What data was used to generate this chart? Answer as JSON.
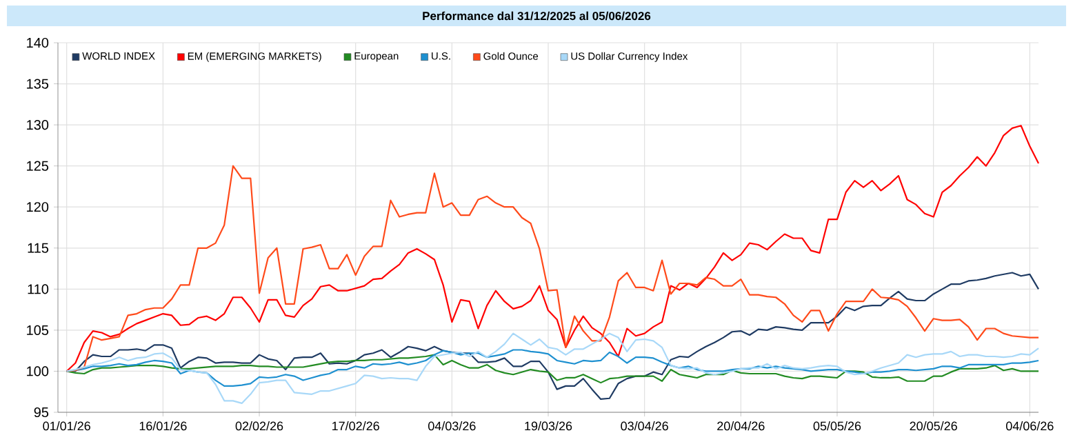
{
  "chart_data": {
    "type": "line",
    "title": "Performance dal 31/12/2025 al 05/06/2026",
    "categories": [
      "01/01/26",
      null,
      null,
      null,
      null,
      null,
      null,
      null,
      null,
      null,
      null,
      "16/01/26",
      null,
      null,
      null,
      null,
      null,
      null,
      null,
      null,
      null,
      null,
      "02/02/26",
      null,
      null,
      null,
      null,
      null,
      null,
      null,
      null,
      null,
      null,
      "17/02/26",
      null,
      null,
      null,
      null,
      null,
      null,
      null,
      null,
      null,
      null,
      "04/03/26",
      null,
      null,
      null,
      null,
      null,
      null,
      null,
      null,
      null,
      null,
      "19/03/26",
      null,
      null,
      null,
      null,
      null,
      null,
      null,
      null,
      null,
      null,
      "03/04/26",
      null,
      null,
      null,
      null,
      null,
      null,
      null,
      null,
      null,
      null,
      "20/04/26",
      null,
      null,
      null,
      null,
      null,
      null,
      null,
      null,
      null,
      null,
      "05/05/26",
      null,
      null,
      null,
      null,
      null,
      null,
      null,
      null,
      null,
      null,
      "20/05/26",
      null,
      null,
      null,
      null,
      null,
      null,
      null,
      null,
      null,
      null,
      "04/06/26",
      null
    ],
    "ylim": [
      95,
      140
    ],
    "yticks": [
      95,
      100,
      105,
      110,
      115,
      120,
      125,
      130,
      135,
      140
    ],
    "grid": true,
    "legend": "top left",
    "series": [
      {
        "name": "WORLD INDEX",
        "color": "#1f3b63",
        "values": [
          100,
          100,
          101.2,
          102,
          101.8,
          101.8,
          102.6,
          102.6,
          102.7,
          102.5,
          103.2,
          103.2,
          102.8,
          100.4,
          101.2,
          101.7,
          101.6,
          101,
          101.1,
          101.1,
          101,
          101,
          102,
          101.5,
          101.3,
          100.2,
          101.6,
          101.7,
          101.7,
          102.2,
          100.9,
          101,
          100.9,
          101.3,
          102,
          102.2,
          102.6,
          101.7,
          102.3,
          103,
          102.8,
          102.5,
          103,
          102.5,
          102.3,
          102.2,
          102.2,
          101.1,
          101.1,
          101.2,
          101.6,
          100.6,
          100.6,
          101.2,
          101.2,
          99.9,
          97.8,
          98.2,
          98.2,
          99.1,
          97.8,
          96.6,
          96.7,
          98.5,
          99.1,
          99.4,
          99.4,
          99.9,
          99.6,
          101.4,
          101.8,
          101.7,
          102.4,
          103,
          103.5,
          104.1,
          104.8,
          104.9,
          104.4,
          105.1,
          105,
          105.4,
          105.3,
          105.1,
          105,
          105.9,
          105.9,
          105.9,
          106.7,
          107.8,
          107.4,
          107.9,
          108,
          108,
          108.9,
          109.7,
          108.8,
          108.6,
          108.6,
          109.4,
          110,
          110.6,
          110.6,
          111,
          111.1,
          111.3,
          111.6,
          111.8,
          112,
          111.6,
          111.8,
          110
        ]
      },
      {
        "name": "EM (EMERGING MARKETS)",
        "color": "#ff0000",
        "values": [
          100,
          101,
          103.5,
          104.9,
          104.7,
          104.2,
          104.5,
          105.2,
          105.8,
          106.2,
          106.6,
          107,
          106.8,
          105.6,
          105.7,
          106.5,
          106.7,
          106.2,
          107,
          109,
          109,
          107.7,
          106,
          108.7,
          108.7,
          106.8,
          106.6,
          108,
          108.8,
          110.3,
          110.5,
          109.8,
          109.8,
          110.1,
          110.4,
          111.2,
          111.3,
          112.2,
          113,
          114.4,
          114.9,
          114.3,
          113.6,
          110.5,
          106,
          108.7,
          108.5,
          105.2,
          108,
          109.8,
          108.5,
          107.6,
          107.9,
          108.6,
          110.4,
          107.4,
          106.3,
          102.9,
          105,
          106.7,
          105.3,
          104.6,
          103.5,
          101.8,
          105.2,
          104.3,
          104.6,
          105.4,
          106,
          110.4,
          109.9,
          110.7,
          110.2,
          111.3,
          112.7,
          114.4,
          113.5,
          114.2,
          115.6,
          115.4,
          114.8,
          115.8,
          116.7,
          116.2,
          116.2,
          114.7,
          114.4,
          118.5,
          118.5,
          121.8,
          123.2,
          122.4,
          123.2,
          122,
          122.8,
          123.8,
          120.9,
          120.3,
          119.2,
          118.8,
          121.8,
          122.6,
          123.8,
          124.8,
          126.1,
          125,
          126.6,
          128.7,
          129.6,
          129.9,
          127.4,
          125.3
        ]
      },
      {
        "name": "European",
        "color": "#228b22",
        "values": [
          100,
          99.8,
          99.7,
          100.2,
          100.4,
          100.4,
          100.5,
          100.6,
          100.7,
          100.7,
          100.7,
          100.6,
          100.4,
          100.3,
          100.3,
          100.4,
          100.5,
          100.6,
          100.6,
          100.6,
          100.7,
          100.7,
          100.6,
          100.6,
          100.5,
          100.5,
          100.5,
          100.5,
          100.7,
          100.9,
          101.1,
          101.2,
          101.2,
          101.3,
          101.3,
          101.4,
          101.4,
          101.5,
          101.6,
          101.6,
          101.7,
          101.8,
          102,
          100.8,
          101.3,
          100.8,
          100.4,
          100.4,
          100.8,
          100.1,
          99.8,
          99.6,
          99.9,
          100.2,
          100,
          99.9,
          98.9,
          99.2,
          99.2,
          99.6,
          99.1,
          98.6,
          99.1,
          99.2,
          99.4,
          99.4,
          99.4,
          99.4,
          98.8,
          100.2,
          99.6,
          99.4,
          99.2,
          99.6,
          99.6,
          99.6,
          100.1,
          99.8,
          99.7,
          99.7,
          99.7,
          99.7,
          99.4,
          99.2,
          99.1,
          99.4,
          99.4,
          99.3,
          99.2,
          100,
          100,
          99.9,
          99.3,
          99.2,
          99.2,
          99.3,
          98.8,
          98.8,
          98.8,
          99.4,
          99.4,
          99.9,
          100.3,
          100.3,
          100.3,
          100.4,
          100.7,
          100.1,
          100.3,
          100,
          100,
          100
        ]
      },
      {
        "name": "U.S.",
        "color": "#1e90d0",
        "values": [
          100,
          100.1,
          100.3,
          100.6,
          100.6,
          100.7,
          100.9,
          100.7,
          100.8,
          101.1,
          101.3,
          101.2,
          101,
          99.7,
          100.1,
          99.9,
          99.8,
          98.9,
          98.2,
          98.2,
          98.3,
          98.5,
          99.3,
          99.2,
          99.3,
          99.6,
          99.4,
          98.9,
          99.2,
          99.5,
          99.7,
          100.2,
          100.2,
          100.6,
          100.4,
          100.9,
          100.8,
          100.9,
          101.1,
          100.8,
          101,
          101.3,
          102,
          102.5,
          102.3,
          102,
          102.2,
          102.2,
          101.7,
          101.9,
          102.1,
          102.6,
          102.6,
          102.4,
          102.3,
          102.1,
          101.3,
          101.1,
          100.9,
          101.3,
          101.2,
          101.3,
          102.3,
          101.8,
          101,
          101.7,
          101.7,
          101.6,
          101.1,
          100.7,
          100.4,
          100.6,
          100.2,
          100,
          100,
          100,
          100.2,
          100.3,
          100.3,
          100.6,
          100.4,
          100.6,
          100.4,
          100.3,
          100.2,
          100,
          100.1,
          100.2,
          100.2,
          100,
          99.9,
          99.7,
          99.9,
          99.9,
          100,
          100.2,
          100.2,
          100.1,
          100.2,
          100.3,
          100.6,
          100.6,
          100.4,
          100.8,
          100.8,
          100.8,
          100.8,
          100.8,
          101,
          101,
          101.1,
          101.3
        ]
      },
      {
        "name": "Gold Ounce",
        "color": "#ff4a1a",
        "values": [
          100,
          100.1,
          100.5,
          104.2,
          103.8,
          104,
          104.2,
          106.8,
          107,
          107.5,
          107.7,
          107.7,
          108.8,
          110.5,
          110.5,
          115,
          115,
          115.6,
          117.8,
          125,
          123.5,
          123.5,
          109.5,
          113.8,
          115,
          108.2,
          108.2,
          114.9,
          115.1,
          115.4,
          112.5,
          112.5,
          114.2,
          111.7,
          114,
          115.2,
          115.2,
          120.8,
          118.8,
          119.1,
          119.3,
          119.3,
          124.1,
          120,
          120.5,
          119,
          119,
          120.9,
          121.3,
          120.5,
          120,
          120,
          118.7,
          118,
          114.9,
          109.8,
          109.9,
          102.9,
          106.7,
          104.9,
          103.7,
          103.7,
          106.6,
          111,
          112,
          110.2,
          110.2,
          109.8,
          113.5,
          109.4,
          110.7,
          110.7,
          110.5,
          111.4,
          111.2,
          110.4,
          110.4,
          111.2,
          109.3,
          109.3,
          109.1,
          109,
          108.2,
          106.8,
          106,
          107.4,
          107.4,
          104.9,
          107,
          108.5,
          108.5,
          108.5,
          110,
          109,
          108.9,
          108.7,
          107.9,
          106.5,
          104.9,
          106.4,
          106.2,
          106.2,
          106.3,
          105.4,
          103.8,
          105.2,
          105.2,
          104.6,
          104.3,
          104.2,
          104.1,
          104.1
        ]
      },
      {
        "name": "US Dollar Currency Index",
        "color": "#a8d8f8",
        "values": [
          100,
          100.2,
          100.5,
          100.8,
          101,
          101.3,
          101.7,
          101.3,
          101.6,
          101.7,
          102.1,
          102.2,
          101.6,
          100.2,
          100.1,
          99.9,
          99.8,
          98.4,
          96.4,
          96.4,
          96.1,
          97.2,
          98.6,
          98.7,
          98.9,
          98.9,
          97.4,
          97.3,
          97.2,
          97.6,
          97.6,
          97.9,
          98.2,
          98.5,
          99.5,
          99.4,
          99.1,
          99.2,
          99.1,
          99.1,
          98.9,
          100.6,
          101.8,
          102,
          102.2,
          102.3,
          101.8,
          102.4,
          101.7,
          102.4,
          103.3,
          104.6,
          103.9,
          103.2,
          103.9,
          102.9,
          102.7,
          102,
          102.7,
          102.7,
          103.3,
          103.9,
          104.6,
          104.1,
          102.4,
          103.8,
          103.9,
          103.7,
          102.9,
          100.7,
          100.4,
          100.3,
          100.4,
          99.8,
          99.6,
          99.8,
          100,
          100.3,
          100.4,
          100.4,
          100.9,
          100.3,
          100.7,
          100.4,
          100.3,
          100.4,
          100.6,
          100.7,
          100.6,
          99.9,
          99.6,
          99.7,
          100,
          100.4,
          100.7,
          101,
          102,
          101.7,
          102,
          102.1,
          102.1,
          102.4,
          101.8,
          102,
          102,
          101.8,
          101.8,
          101.7,
          101.8,
          102.1,
          102,
          102.8
        ]
      }
    ]
  }
}
